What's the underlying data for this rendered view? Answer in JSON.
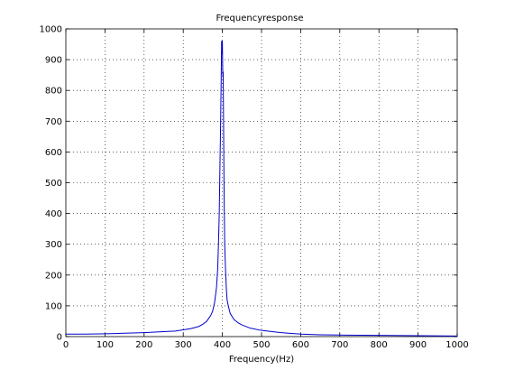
{
  "chart_data": {
    "type": "line",
    "title": "Frequencyresponse",
    "xlabel": "Frequency(Hz)",
    "ylabel": "",
    "xlim": [
      0,
      1000
    ],
    "ylim": [
      0,
      1000
    ],
    "xticks": [
      0,
      100,
      200,
      300,
      400,
      500,
      600,
      700,
      800,
      900,
      1000
    ],
    "yticks": [
      0,
      100,
      200,
      300,
      400,
      500,
      600,
      700,
      800,
      900,
      1000
    ],
    "grid": true,
    "series": [
      {
        "color": "#0000cc",
        "x": [
          0,
          50,
          100,
          150,
          200,
          250,
          280,
          300,
          320,
          340,
          350,
          360,
          370,
          375,
          380,
          385,
          388,
          390,
          392,
          394,
          395,
          396,
          397,
          398,
          399,
          400,
          401,
          402,
          403,
          404,
          405,
          406,
          408,
          410,
          412,
          415,
          420,
          430,
          440,
          450,
          470,
          500,
          550,
          600,
          650,
          700,
          800,
          900,
          1000
        ],
        "y": [
          8,
          8,
          9,
          11,
          13,
          16,
          18,
          22,
          26,
          33,
          40,
          50,
          68,
          82,
          110,
          160,
          220,
          300,
          400,
          570,
          650,
          740,
          840,
          960,
          920,
          960,
          850,
          860,
          700,
          520,
          400,
          300,
          220,
          160,
          120,
          100,
          75,
          55,
          45,
          38,
          28,
          20,
          13,
          8,
          6,
          5,
          4,
          3,
          2
        ]
      }
    ]
  }
}
